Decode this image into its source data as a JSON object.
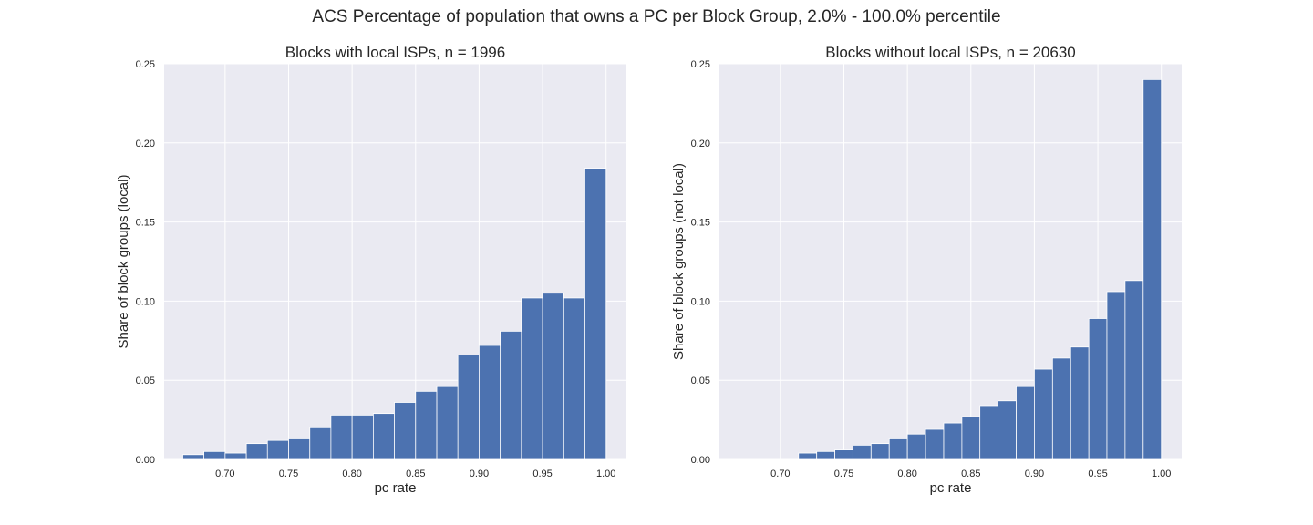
{
  "suptitle": "ACS Percentage of population that owns a PC per Block Group, 2.0% - 100.0% percentile",
  "colors": {
    "bar": "#4c72b0",
    "plot_bg": "#eaeaf2",
    "grid": "#ffffff",
    "text": "#262626"
  },
  "chart_data": [
    {
      "type": "bar",
      "title": "Blocks with local ISPs, n = 1996",
      "xlabel": "pc rate",
      "ylabel": "Share of block groups (local)",
      "xlim": [
        0.652,
        1.016
      ],
      "ylim": [
        0,
        0.25
      ],
      "grid": true,
      "xticks": [
        "0.70",
        "0.75",
        "0.80",
        "0.85",
        "0.90",
        "0.95",
        "1.00"
      ],
      "yticks": [
        "0.00",
        "0.05",
        "0.10",
        "0.15",
        "0.20",
        "0.25"
      ],
      "bin_width": 0.0167,
      "bin_left_edges": [
        0.6667,
        0.6833,
        0.7,
        0.7167,
        0.7333,
        0.75,
        0.7667,
        0.7833,
        0.8,
        0.8167,
        0.8333,
        0.85,
        0.8667,
        0.8833,
        0.9,
        0.9167,
        0.9333,
        0.95,
        0.9667,
        0.9833
      ],
      "values": [
        0.003,
        0.005,
        0.004,
        0.01,
        0.012,
        0.013,
        0.02,
        0.028,
        0.028,
        0.029,
        0.036,
        0.043,
        0.046,
        0.066,
        0.072,
        0.081,
        0.102,
        0.105,
        0.102,
        0.184
      ]
    },
    {
      "type": "bar",
      "title": "Blocks without local ISPs, n = 20630",
      "xlabel": "pc rate",
      "ylabel": "Share of block groups (not local)",
      "xlim": [
        0.652,
        1.016
      ],
      "ylim": [
        0,
        0.25
      ],
      "grid": true,
      "xticks": [
        "0.70",
        "0.75",
        "0.80",
        "0.85",
        "0.90",
        "0.95",
        "1.00"
      ],
      "yticks": [
        "0.00",
        "0.05",
        "0.10",
        "0.15",
        "0.20",
        "0.25"
      ],
      "bin_width": 0.0143,
      "bin_left_edges": [
        0.7143,
        0.7286,
        0.7429,
        0.7571,
        0.7714,
        0.7857,
        0.8,
        0.8143,
        0.8286,
        0.8429,
        0.8571,
        0.8714,
        0.8857,
        0.9,
        0.9143,
        0.9286,
        0.9429,
        0.9571,
        0.9714,
        0.9857
      ],
      "values": [
        0.004,
        0.005,
        0.006,
        0.009,
        0.01,
        0.013,
        0.016,
        0.019,
        0.023,
        0.027,
        0.034,
        0.037,
        0.046,
        0.057,
        0.064,
        0.071,
        0.089,
        0.106,
        0.113,
        0.24
      ]
    }
  ]
}
